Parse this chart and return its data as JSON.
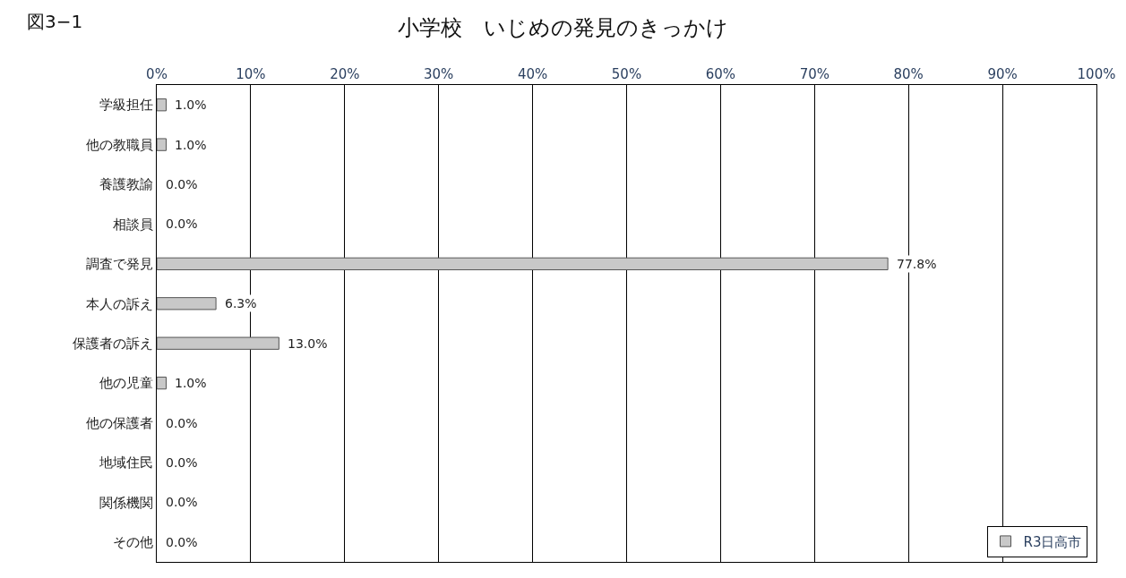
{
  "chart_data": {
    "type": "bar",
    "orientation": "horizontal",
    "title": "小学校　いじめの発見のきっかけ",
    "annotations": [
      "図3−1"
    ],
    "categories": [
      "学級担任",
      "他の教職員",
      "養護教諭",
      "相談員",
      "調査で発見",
      "本人の訴え",
      "保護者の訴え",
      "他の児童",
      "他の保護者",
      "地域住民",
      "関係機関",
      "その他"
    ],
    "series": [
      {
        "name": "R3日高市",
        "color": "#c8c8c8",
        "values": [
          1.0,
          1.0,
          0.0,
          0.0,
          77.8,
          6.3,
          13.0,
          1.0,
          0.0,
          0.0,
          0.0,
          0.0
        ],
        "value_labels": [
          "1.0%",
          "1.0%",
          "0.0%",
          "0.0%",
          "77.8%",
          "6.3%",
          "13.0%",
          "1.0%",
          "0.0%",
          "0.0%",
          "0.0%",
          "0.0%"
        ]
      }
    ],
    "xlim": [
      0,
      100
    ],
    "xticks": [
      {
        "value": 0,
        "label": "0%"
      },
      {
        "value": 10,
        "label": "10%"
      },
      {
        "value": 20,
        "label": "20%"
      },
      {
        "value": 30,
        "label": "30%"
      },
      {
        "value": 40,
        "label": "40%"
      },
      {
        "value": 50,
        "label": "50%"
      },
      {
        "value": 60,
        "label": "60%"
      },
      {
        "value": 70,
        "label": "70%"
      },
      {
        "value": 80,
        "label": "80%"
      },
      {
        "value": 90,
        "label": "90%"
      },
      {
        "value": 100,
        "label": "100%"
      }
    ],
    "grid": "x",
    "legend": "bottom right"
  }
}
